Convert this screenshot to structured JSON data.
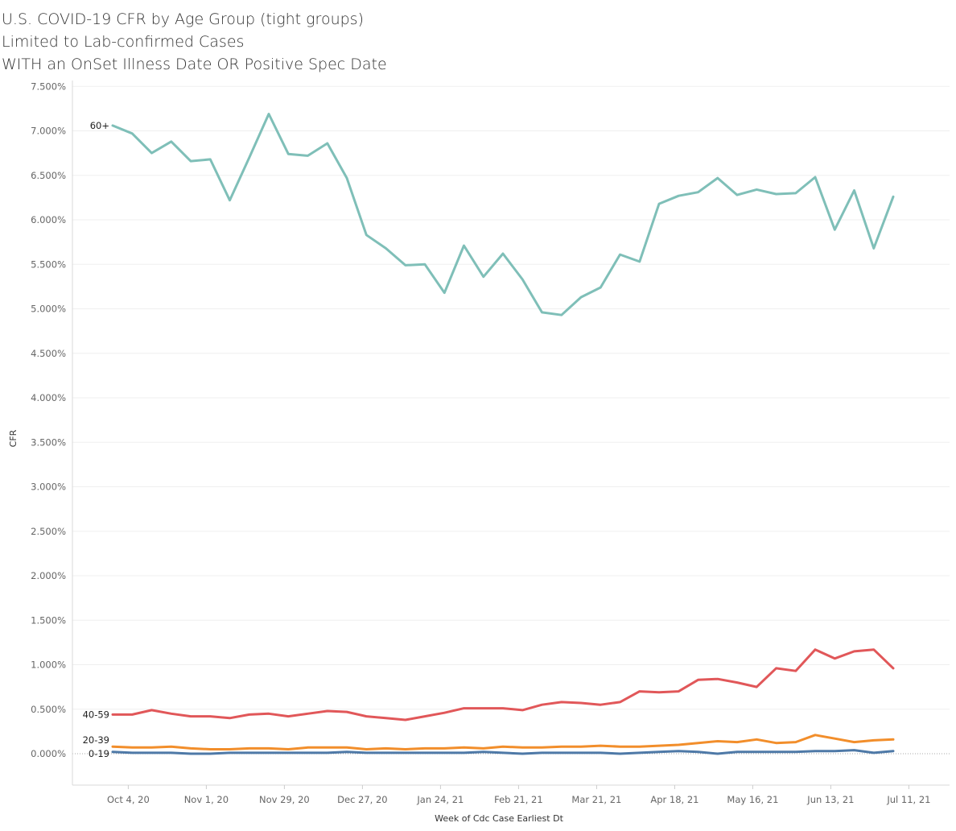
{
  "header": {
    "title_line1": "U.S. COVID-19 CFR by Age Group (tight groups)",
    "title_line2": "Limited to Lab-confirmed Cases",
    "title_line3": "WITH an OnSet Illness Date OR Positive Spec Date"
  },
  "chart_data": {
    "type": "line",
    "title": "U.S. COVID-19 CFR by Age Group (tight groups)",
    "xlabel": "Week of Cdc Case Earliest Dt",
    "ylabel": "CFR",
    "ylim": [
      -0.4,
      7.5
    ],
    "y_ticks": [
      0,
      0.5,
      1,
      1.5,
      2,
      2.5,
      3,
      3.5,
      4,
      4.5,
      5,
      5.5,
      6,
      6.5,
      7,
      7.5
    ],
    "y_tick_labels": [
      "0.000%",
      "0.500%",
      "1.000%",
      "1.500%",
      "2.000%",
      "2.500%",
      "3.000%",
      "3.500%",
      "4.000%",
      "4.500%",
      "5.000%",
      "5.500%",
      "6.000%",
      "6.500%",
      "7.000%",
      "7.500%"
    ],
    "x_tick_labels": [
      "Oct 4, 20",
      "Nov 1, 20",
      "Nov 29, 20",
      "Dec 27, 20",
      "Jan 24, 21",
      "Feb 21, 21",
      "Mar 21, 21",
      "Apr 18, 21",
      "May 16, 21",
      "Jun 13, 21",
      "Jul 11, 21"
    ],
    "x_tick_weeks": [
      0.8,
      4.8,
      8.8,
      12.8,
      16.8,
      20.8,
      24.8,
      28.8,
      32.8,
      36.8,
      40.8
    ],
    "grid": true,
    "series": [
      {
        "name": "60+",
        "color": "#7fbfb8",
        "values": [
          7.06,
          6.97,
          6.75,
          6.88,
          6.66,
          6.68,
          6.22,
          6.7,
          7.19,
          6.74,
          6.72,
          6.86,
          6.47,
          5.83,
          5.68,
          5.49,
          5.5,
          5.18,
          5.71,
          5.36,
          5.62,
          5.33,
          4.96,
          4.93,
          5.13,
          5.24,
          5.61,
          5.53,
          6.18,
          6.27,
          6.31,
          6.47,
          6.28,
          6.34,
          6.29,
          6.3,
          6.48,
          5.89,
          6.33,
          5.68,
          6.26
        ]
      },
      {
        "name": "40-59",
        "color": "#e15759",
        "values": [
          0.44,
          0.44,
          0.49,
          0.45,
          0.42,
          0.42,
          0.4,
          0.44,
          0.45,
          0.42,
          0.45,
          0.48,
          0.47,
          0.42,
          0.4,
          0.38,
          0.42,
          0.46,
          0.51,
          0.51,
          0.51,
          0.49,
          0.55,
          0.58,
          0.57,
          0.55,
          0.58,
          0.7,
          0.69,
          0.7,
          0.83,
          0.84,
          0.8,
          0.75,
          0.96,
          0.93,
          1.17,
          1.07,
          1.15,
          1.17,
          0.96
        ]
      },
      {
        "name": "20-39",
        "color": "#f28e2b",
        "values": [
          0.08,
          0.07,
          0.07,
          0.08,
          0.06,
          0.05,
          0.05,
          0.06,
          0.06,
          0.05,
          0.07,
          0.07,
          0.07,
          0.05,
          0.06,
          0.05,
          0.06,
          0.06,
          0.07,
          0.06,
          0.08,
          0.07,
          0.07,
          0.08,
          0.08,
          0.09,
          0.08,
          0.08,
          0.09,
          0.1,
          0.12,
          0.14,
          0.13,
          0.16,
          0.12,
          0.13,
          0.21,
          0.17,
          0.13,
          0.15,
          0.16
        ]
      },
      {
        "name": "0-19",
        "color": "#4e79a7",
        "values": [
          0.02,
          0.01,
          0.01,
          0.01,
          0.0,
          0.0,
          0.01,
          0.01,
          0.01,
          0.01,
          0.01,
          0.01,
          0.02,
          0.01,
          0.01,
          0.01,
          0.01,
          0.01,
          0.01,
          0.02,
          0.01,
          0.0,
          0.01,
          0.01,
          0.01,
          0.01,
          0.0,
          0.01,
          0.02,
          0.03,
          0.02,
          0.0,
          0.02,
          0.02,
          0.02,
          0.02,
          0.03,
          0.03,
          0.04,
          0.01,
          0.03
        ]
      }
    ]
  }
}
